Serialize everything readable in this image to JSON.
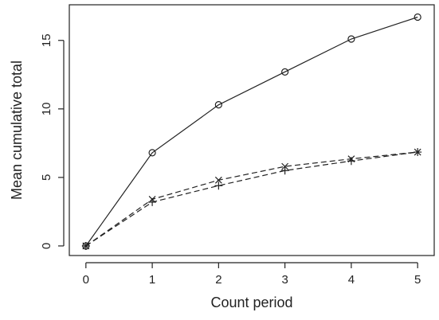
{
  "chart_data": {
    "type": "line",
    "title": "",
    "xlabel": "Count period",
    "ylabel": "Mean cumulative total",
    "xlim": [
      -0.25,
      5.25
    ],
    "ylim": [
      -0.7,
      17.6
    ],
    "x_ticks": [
      0,
      1,
      2,
      3,
      4,
      5
    ],
    "y_ticks": [
      0,
      5,
      10,
      15
    ],
    "grid": false,
    "legend": "none",
    "x": [
      0,
      1,
      2,
      3,
      4,
      5
    ],
    "series": [
      {
        "marker": "circle",
        "line_style": "solid",
        "values": [
          0,
          6.8,
          10.3,
          12.7,
          15.1,
          16.7
        ]
      },
      {
        "marker": "x",
        "line_style": "dashed",
        "values": [
          0,
          3.4,
          4.8,
          5.8,
          6.35,
          6.85
        ]
      },
      {
        "marker": "plus",
        "line_style": "dashed",
        "values": [
          0,
          3.2,
          4.4,
          5.5,
          6.2,
          6.85
        ]
      }
    ]
  }
}
